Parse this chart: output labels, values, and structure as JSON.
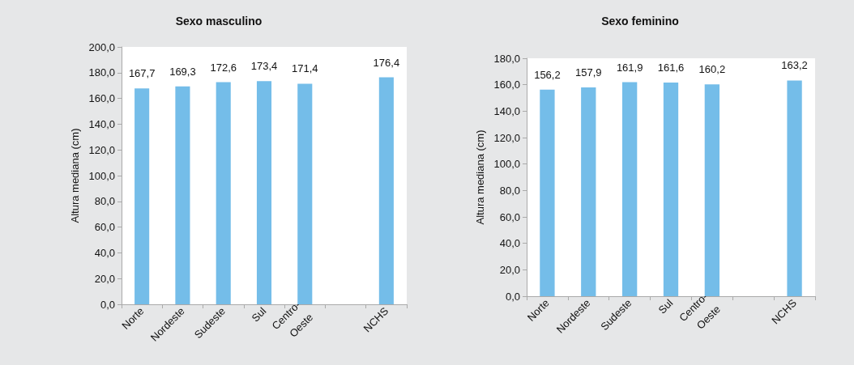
{
  "chart_data": [
    {
      "type": "bar",
      "title": "Sexo masculino",
      "ylabel": "Altura mediana (cm)",
      "categories": [
        "Norte",
        "Nordeste",
        "Sudeste",
        "Sul",
        "Centro-\nOeste",
        null,
        "NCHS"
      ],
      "values": [
        167.7,
        169.3,
        172.6,
        173.4,
        171.4,
        null,
        176.4
      ],
      "value_labels": [
        "167,7",
        "169,3",
        "172,6",
        "173,4",
        "171,4",
        null,
        "176,4"
      ],
      "color": "#74bde9",
      "ylim": [
        0,
        200
      ],
      "yticks": [
        {
          "value": 0,
          "label": "0,0"
        },
        {
          "value": 20,
          "label": "20,0"
        },
        {
          "value": 40,
          "label": "40,0"
        },
        {
          "value": 60,
          "label": "60,0"
        },
        {
          "value": 80,
          "label": "80,0"
        },
        {
          "value": 100,
          "label": "100,0"
        },
        {
          "value": 120,
          "label": "120,0"
        },
        {
          "value": 140,
          "label": "140,0"
        },
        {
          "value": 160,
          "label": "160,0"
        },
        {
          "value": 180,
          "label": "180,0"
        },
        {
          "value": 200,
          "label": "200,0"
        }
      ],
      "grid": false
    },
    {
      "type": "bar",
      "title": "Sexo feminino",
      "ylabel": "Altura mediana (cm)",
      "categories": [
        "Norte",
        "Nordeste",
        "Sudeste",
        "Sul",
        "Centro-\nOeste",
        null,
        "NCHS"
      ],
      "values": [
        156.2,
        157.9,
        161.9,
        161.6,
        160.2,
        null,
        163.2
      ],
      "value_labels": [
        "156,2",
        "157,9",
        "161,9",
        "161,6",
        "160,2",
        null,
        "163,2"
      ],
      "color": "#74bde9",
      "ylim": [
        0,
        180
      ],
      "yticks": [
        {
          "value": 0,
          "label": "0,0"
        },
        {
          "value": 20,
          "label": "20,0"
        },
        {
          "value": 40,
          "label": "40,0"
        },
        {
          "value": 60,
          "label": "60,0"
        },
        {
          "value": 80,
          "label": "80,0"
        },
        {
          "value": 100,
          "label": "100,0"
        },
        {
          "value": 120,
          "label": "120,0"
        },
        {
          "value": 140,
          "label": "140,0"
        },
        {
          "value": 160,
          "label": "160,0"
        },
        {
          "value": 180,
          "label": "180,0"
        }
      ],
      "grid": false
    }
  ]
}
